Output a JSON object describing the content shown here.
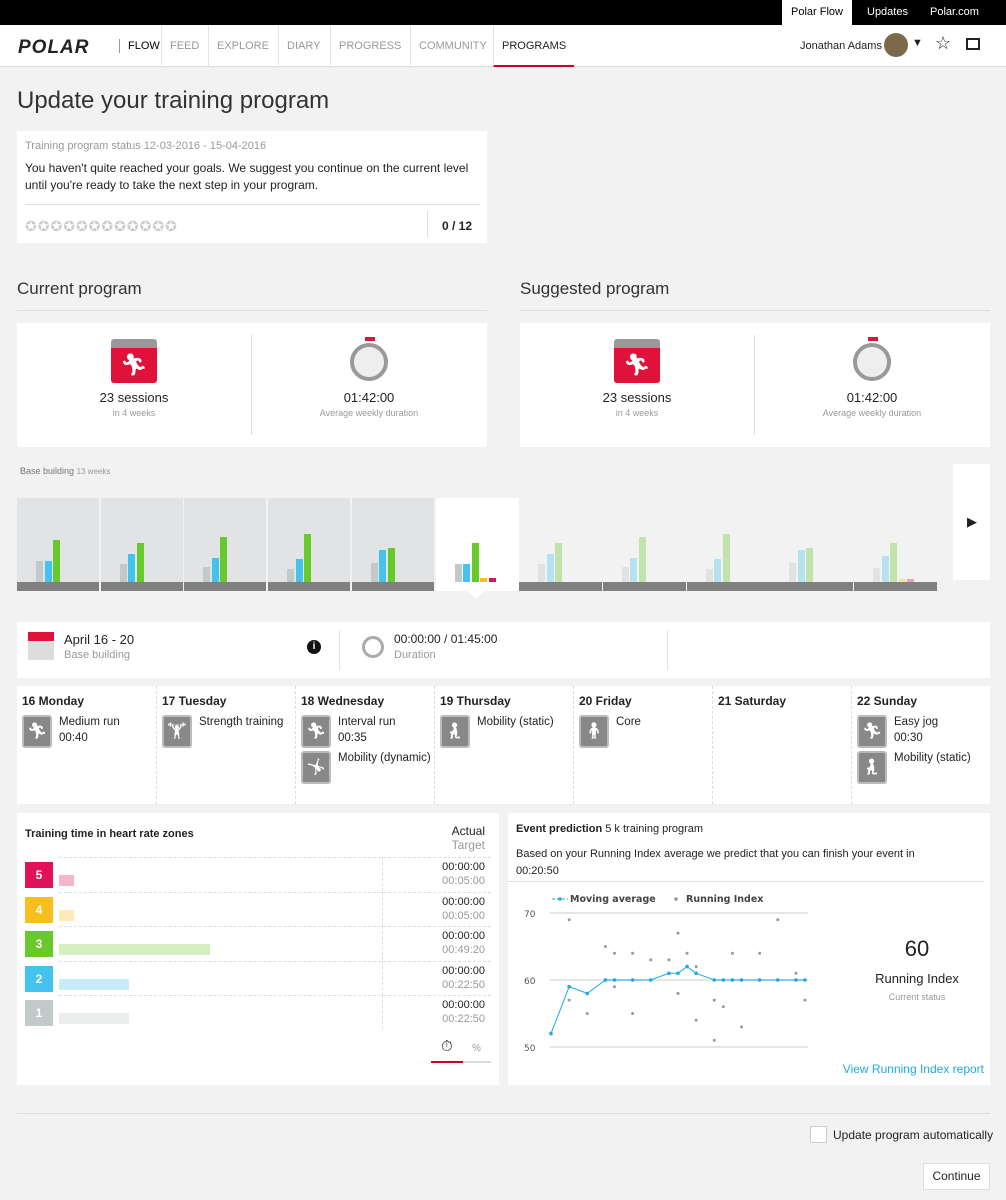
{
  "topbar": {
    "links": [
      "Polar Flow",
      "Updates",
      "Polar.com"
    ]
  },
  "nav": {
    "logo": "POLAR",
    "items": [
      "FLOW",
      "FEED",
      "EXPLORE",
      "DIARY",
      "PROGRESS",
      "COMMUNITY",
      "PROGRAMS"
    ],
    "active": "PROGRAMS",
    "user": "Jonathan Adams"
  },
  "page": {
    "title": "Update your training program"
  },
  "status": {
    "label": "Training program status 12-03-2016 - 15-04-2016",
    "message": "You haven't quite reached your goals. We suggest you continue on the current level until you're ready to take the next step in your program.",
    "stars_total": 12,
    "stars_filled": 0,
    "score": "0 / 12"
  },
  "current": {
    "heading": "Current program",
    "sessions": "23 sessions",
    "sessions_sub": "in 4 weeks",
    "duration": "01:42:00",
    "duration_sub": "Average weekly duration"
  },
  "suggested": {
    "heading": "Suggested program",
    "sessions": "23 sessions",
    "sessions_sub": "in 4 weeks",
    "duration": "01:42:00",
    "duration_sub": "Average weekly duration"
  },
  "weeks": {
    "phase": "Base building",
    "phase_len": "13 weeks",
    "current_index": 5,
    "zone_colors": [
      "#c2c9c9",
      "#45c3ef",
      "#67c92a",
      "#f8bd1f",
      "#e0125a"
    ],
    "levels": [
      [
        21,
        21,
        42,
        0,
        0
      ],
      [
        18,
        28,
        39,
        0,
        0
      ],
      [
        15,
        24,
        45,
        0,
        0
      ],
      [
        13,
        23,
        48,
        0,
        0
      ],
      [
        19,
        32,
        34,
        0,
        0
      ],
      [
        18,
        18,
        39,
        4,
        4
      ],
      [
        18,
        28,
        39,
        0,
        0
      ],
      [
        15,
        24,
        45,
        0,
        0
      ],
      [
        13,
        23,
        48,
        0,
        0
      ],
      [
        19,
        32,
        34,
        0,
        0
      ],
      [
        14,
        26,
        39,
        3,
        3
      ]
    ]
  },
  "week_summary": {
    "dates": "April 16 - 20",
    "phase": "Base building",
    "duration": "00:00:00 / 01:45:00",
    "duration_label": "Duration"
  },
  "days": [
    {
      "label": "16 Monday",
      "sessions": [
        {
          "name": "Medium run",
          "time": "00:40",
          "icon": "running-icon"
        }
      ]
    },
    {
      "label": "17 Tuesday",
      "sessions": [
        {
          "name": "Strength training",
          "time": "",
          "icon": "strength-icon"
        }
      ]
    },
    {
      "label": "18 Wednesday",
      "sessions": [
        {
          "name": "Interval run",
          "time": "00:35",
          "icon": "running-icon"
        },
        {
          "name": "Mobility (dynamic)",
          "time": "",
          "icon": "mobility-icon"
        }
      ]
    },
    {
      "label": "19 Thursday",
      "sessions": [
        {
          "name": "Mobility (static)",
          "time": "",
          "icon": "lunge-icon"
        }
      ]
    },
    {
      "label": "20 Friday",
      "sessions": [
        {
          "name": "Core",
          "time": "",
          "icon": "core-icon"
        }
      ]
    },
    {
      "label": "21 Saturday",
      "sessions": []
    },
    {
      "label": "22 Sunday",
      "sessions": [
        {
          "name": "Easy jog",
          "time": "00:30",
          "icon": "running-icon"
        },
        {
          "name": "Mobility (static)",
          "time": "",
          "icon": "lunge-icon"
        }
      ]
    }
  ],
  "hr_zones": {
    "title": "Training time in heart rate zones",
    "actual_label": "Actual",
    "target_label": "Target",
    "percent_label": "%",
    "zones": [
      {
        "zone": "5",
        "color": "#e0125a",
        "light": "#f5b6cc",
        "actual": "00:00:00",
        "target": "00:05:00",
        "target_min": 5
      },
      {
        "zone": "4",
        "color": "#f8bd1f",
        "light": "#fdeab8",
        "actual": "00:00:00",
        "target": "00:05:00",
        "target_min": 5
      },
      {
        "zone": "3",
        "color": "#67c92a",
        "light": "#d2efc0",
        "actual": "00:00:00",
        "target": "00:49:20",
        "target_min": 49.33
      },
      {
        "zone": "2",
        "color": "#45c3ef",
        "light": "#c6ecfa",
        "actual": "00:00:00",
        "target": "00:22:50",
        "target_min": 22.83
      },
      {
        "zone": "1",
        "color": "#c2c9c9",
        "light": "#eceeee",
        "actual": "00:00:00",
        "target": "00:22:50",
        "target_min": 22.83
      }
    ]
  },
  "event": {
    "title": "Event prediction",
    "subtitle": "5 k training program",
    "text": "Based on your Running Index average we predict that you can finish your event in",
    "prediction": "00:20:50",
    "ri_value": "60",
    "ri_label": "Running Index",
    "ri_sub": "Current status",
    "link": "View Running Index report"
  },
  "chart_data": {
    "type": "line",
    "ylim": [
      50,
      70
    ],
    "yticks": [
      "70",
      "60",
      "50"
    ],
    "grid": true,
    "legend": "top",
    "series": [
      {
        "name": "Moving average",
        "kind": "line",
        "color": "#1fa9e1",
        "x": [
          0,
          2,
          4,
          6,
          7,
          9,
          11,
          13,
          14,
          15,
          16,
          18,
          19,
          20,
          21,
          23,
          25,
          27,
          28
        ],
        "y": [
          52,
          59,
          58,
          60,
          60,
          60,
          60,
          61,
          61,
          62,
          61,
          60,
          60,
          60,
          60,
          60,
          60,
          60,
          60
        ]
      },
      {
        "name": "Running Index",
        "kind": "scatter",
        "color": "#999999",
        "x": [
          0,
          2,
          2,
          4,
          6,
          7,
          7,
          9,
          9,
          11,
          13,
          14,
          14,
          15,
          16,
          16,
          18,
          18,
          19,
          20,
          21,
          23,
          25,
          27,
          28
        ],
        "y": [
          52,
          69,
          57,
          55,
          65,
          64,
          59,
          64,
          55,
          63,
          63,
          67,
          58,
          64,
          62,
          54,
          57,
          51,
          56,
          64,
          53,
          64,
          69,
          61,
          57
        ]
      }
    ]
  },
  "footer": {
    "auto_update": "Update program automatically",
    "continue": "Continue"
  }
}
